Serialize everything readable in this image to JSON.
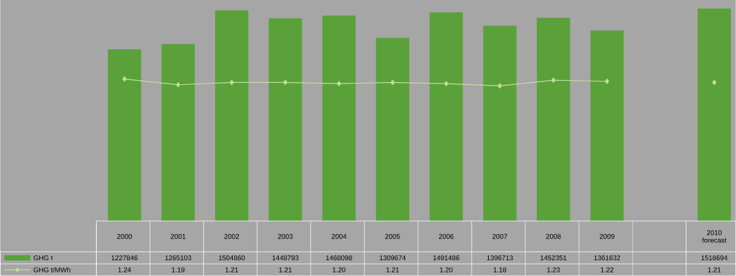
{
  "chart_data": {
    "type": "bar",
    "categories": [
      "2000",
      "2001",
      "2002",
      "2003",
      "2004",
      "2005",
      "2006",
      "2007",
      "2008",
      "2009",
      null,
      "2010 forecast"
    ],
    "series": [
      {
        "name": "GHG t",
        "color": "#5aa13a",
        "values": [
          1227846,
          1265103,
          1504860,
          1448793,
          1468098,
          1309674,
          1491486,
          1396713,
          1452351,
          1361632,
          null,
          1518694
        ]
      },
      {
        "name": "GHG t/MWh",
        "type": "line",
        "axis": "y2",
        "color": "#c6dd9e",
        "marker": "diamond",
        "values": [
          1.24,
          1.19,
          1.21,
          1.21,
          1.2,
          1.21,
          1.2,
          1.18,
          1.23,
          1.22,
          null,
          1.21
        ],
        "value_labels": [
          "1.24",
          "1.19",
          "1.21",
          "1.21",
          "1.20",
          "1.21",
          "1.20",
          "1.18",
          "1.23",
          "1.22",
          null,
          "1.21"
        ]
      }
    ],
    "ylim": [
      0,
      1580000
    ],
    "y2lim": [
      0,
      1.93
    ],
    "data_labels": true,
    "legend": "bottom left"
  }
}
